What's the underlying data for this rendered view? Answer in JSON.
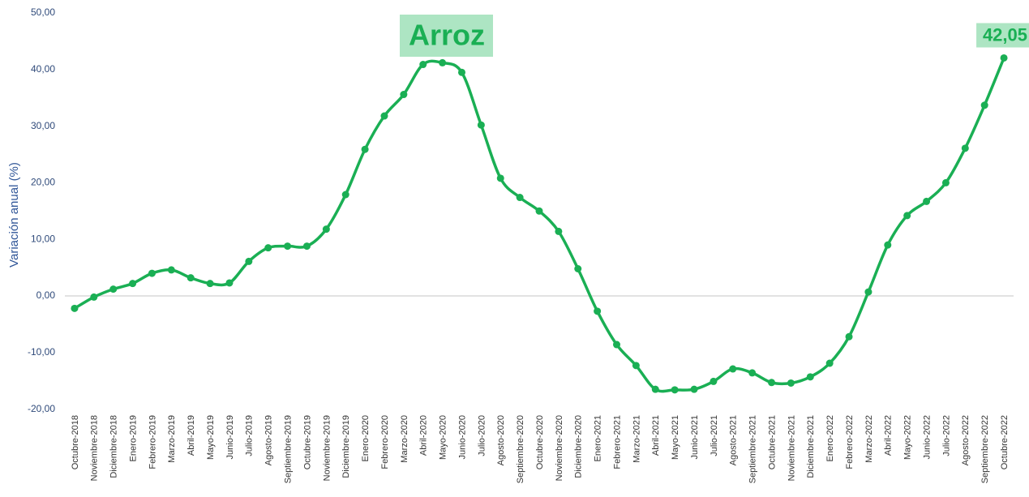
{
  "chart_data": {
    "type": "line",
    "title": "Arroz",
    "y_label": "Variación anual (%)",
    "categories": [
      "Octubre-2018",
      "Noviembre-2018",
      "Diciembre-2018",
      "Enero-2019",
      "Febrero-2019",
      "Marzo-2019",
      "Abril-2019",
      "Mayo-2019",
      "Junio-2019",
      "Julio-2019",
      "Agosto-2019",
      "Septiembre-2019",
      "Octubre-2019",
      "Noviembre-2019",
      "Diciembre-2019",
      "Enero-2020",
      "Febrero-2020",
      "Marzo-2020",
      "Abril-2020",
      "Mayo-2020",
      "Junio-2020",
      "Julio-2020",
      "Agosto-2020",
      "Septiembre-2020",
      "Octubre-2020",
      "Noviembre-2020",
      "Diciembre-2020",
      "Enero-2021",
      "Febrero-2021",
      "Marzo-2021",
      "Abril-2021",
      "Mayo-2021",
      "Junio-2021",
      "Julio-2021",
      "Agosto-2021",
      "Septiembre-2021",
      "Octubre-2021",
      "Noviembre-2021",
      "Diciembre-2021",
      "Enero-2022",
      "Febrero-2022",
      "Marzo-2022",
      "Abril-2022",
      "Mayo-2022",
      "Junio-2022",
      "Julio-2022",
      "Agosto-2022",
      "Septiembre-2022",
      "Octubre-2022"
    ],
    "series": [
      {
        "name": "Arroz",
        "color": "#1aaf54",
        "values": [
          -2.2,
          -0.2,
          1.2,
          2.2,
          4.0,
          4.6,
          3.2,
          2.2,
          2.3,
          6.1,
          8.5,
          8.8,
          8.8,
          11.8,
          17.9,
          25.9,
          31.8,
          35.6,
          40.9,
          41.2,
          39.5,
          30.2,
          20.8,
          17.4,
          15.0,
          11.4,
          4.8,
          -2.7,
          -8.6,
          -12.3,
          -16.5,
          -16.6,
          -16.5,
          -15.1,
          -12.9,
          -13.6,
          -15.3,
          -15.4,
          -14.3,
          -11.9,
          -7.2,
          0.7,
          9.0,
          14.2,
          16.7,
          20.0,
          26.1,
          33.7,
          42.05
        ],
        "value_labels": [
          null,
          null,
          null,
          null,
          null,
          null,
          null,
          null,
          null,
          null,
          null,
          null,
          null,
          null,
          null,
          null,
          null,
          null,
          null,
          null,
          null,
          null,
          null,
          null,
          null,
          null,
          null,
          null,
          null,
          null,
          null,
          null,
          null,
          null,
          null,
          null,
          null,
          null,
          null,
          null,
          null,
          null,
          null,
          null,
          null,
          null,
          null,
          null,
          "42,05"
        ]
      }
    ],
    "ylim": [
      -20,
      50
    ],
    "yticks": [
      {
        "value": -20,
        "label": "-20,00"
      },
      {
        "value": -10,
        "label": "-10,00"
      },
      {
        "value": 0,
        "label": "0,00"
      },
      {
        "value": 10,
        "label": "10,00"
      },
      {
        "value": 20,
        "label": "20,00"
      },
      {
        "value": 30,
        "label": "30,00"
      },
      {
        "value": 40,
        "label": "40,00"
      },
      {
        "value": 50,
        "label": "50,00"
      }
    ],
    "grid": false
  }
}
